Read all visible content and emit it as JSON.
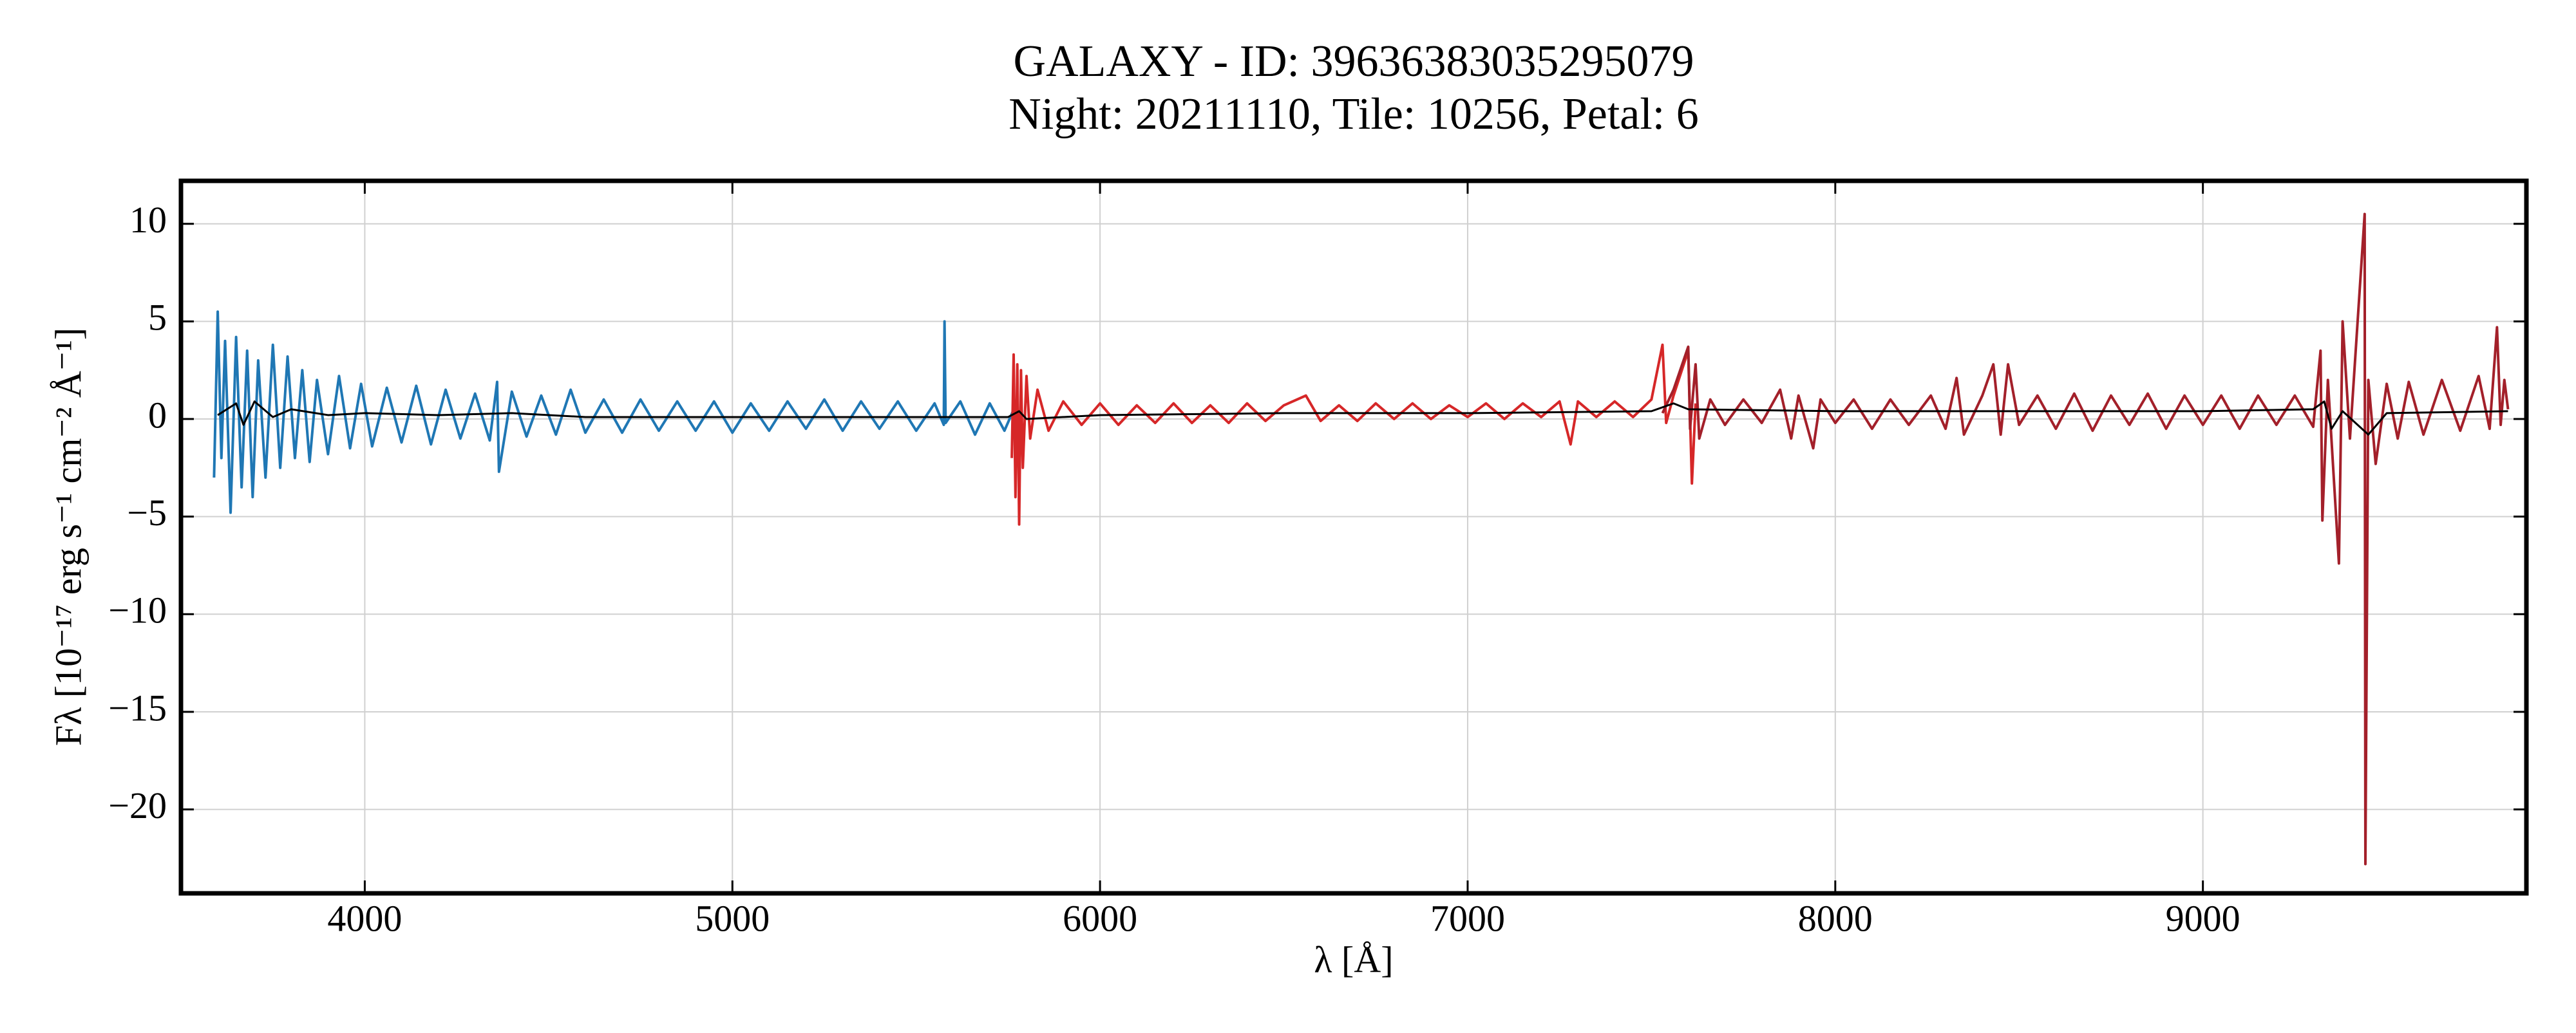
{
  "chart_data": {
    "type": "line",
    "title": "GALAXY - ID: 39636383035295079",
    "subtitle": "Night: 20211110, Tile: 10256, Petal: 6",
    "x_label": "λ [Å]",
    "y_label": "Fλ [10⁻¹⁷ erg s⁻¹ cm⁻² Å⁻¹]",
    "xlim": [
      3500,
      9880
    ],
    "ylim": [
      -24.3,
      12.2
    ],
    "xticks": [
      4000,
      5000,
      6000,
      7000,
      8000,
      9000
    ],
    "yticks": [
      10,
      5,
      0,
      {
        "value": -5,
        "label": "−5"
      },
      {
        "value": -10,
        "label": "−10"
      },
      {
        "value": -15,
        "label": "−15"
      },
      {
        "value": -20,
        "label": "−20"
      }
    ],
    "grid": true,
    "series": [
      {
        "color": "#1f77b4",
        "x": [
          3590,
          3600,
          3610,
          3620,
          3635,
          3650,
          3665,
          3680,
          3695,
          3710,
          3730,
          3750,
          3770,
          3790,
          3810,
          3830,
          3850,
          3870,
          3900,
          3930,
          3960,
          3990,
          4020,
          4060,
          4100,
          4140,
          4180,
          4220,
          4260,
          4300,
          4340,
          4360,
          4365,
          4400,
          4440,
          4480,
          4520,
          4560,
          4600,
          4650,
          4700,
          4750,
          4800,
          4850,
          4900,
          4950,
          5000,
          5050,
          5100,
          5150,
          5200,
          5250,
          5300,
          5350,
          5400,
          5450,
          5500,
          5550,
          5575,
          5577,
          5580,
          5620,
          5660,
          5700,
          5740,
          5770
        ],
        "values": [
          -3.0,
          5.5,
          -2.0,
          4.0,
          -4.8,
          4.2,
          -3.5,
          3.5,
          -4.0,
          3.0,
          -3.0,
          3.8,
          -2.5,
          3.2,
          -2.0,
          2.5,
          -2.2,
          2.0,
          -1.8,
          2.2,
          -1.5,
          1.8,
          -1.4,
          1.6,
          -1.2,
          1.7,
          -1.3,
          1.5,
          -1.0,
          1.3,
          -1.1,
          1.9,
          -2.7,
          1.4,
          -0.9,
          1.2,
          -0.8,
          1.5,
          -0.7,
          1.0,
          -0.7,
          1.0,
          -0.6,
          0.9,
          -0.6,
          0.9,
          -0.7,
          0.8,
          -0.6,
          0.9,
          -0.5,
          1.0,
          -0.6,
          0.9,
          -0.5,
          0.9,
          -0.6,
          0.8,
          -0.3,
          5.0,
          -0.2,
          0.9,
          -0.8,
          0.8,
          -0.6,
          0.7
        ]
      },
      {
        "color": "#d62728",
        "x": [
          5760,
          5765,
          5770,
          5775,
          5780,
          5785,
          5790,
          5800,
          5810,
          5830,
          5860,
          5900,
          5950,
          6000,
          6050,
          6100,
          6150,
          6200,
          6250,
          6300,
          6350,
          6400,
          6450,
          6500,
          6560,
          6600,
          6650,
          6700,
          6750,
          6800,
          6850,
          6900,
          6950,
          7000,
          7050,
          7100,
          7150,
          7200,
          7250,
          7280,
          7300,
          7350,
          7400,
          7450,
          7500,
          7530,
          7540,
          7560,
          7600,
          7610,
          7620
        ],
        "values": [
          -2.0,
          3.3,
          -4.0,
          2.8,
          -5.4,
          2.5,
          -2.5,
          2.2,
          -1.0,
          1.5,
          -0.6,
          0.9,
          -0.3,
          0.8,
          -0.3,
          0.7,
          -0.2,
          0.8,
          -0.2,
          0.7,
          -0.2,
          0.8,
          -0.1,
          0.7,
          1.2,
          -0.1,
          0.7,
          -0.1,
          0.8,
          0.0,
          0.8,
          0.0,
          0.7,
          0.1,
          0.8,
          0.0,
          0.8,
          0.1,
          0.9,
          -1.3,
          0.9,
          0.1,
          0.9,
          0.1,
          1.0,
          3.8,
          -0.2,
          1.2,
          3.5,
          -3.3,
          0.8
        ]
      },
      {
        "color": "#a3202a",
        "x": [
          7530,
          7560,
          7600,
          7605,
          7620,
          7630,
          7660,
          7700,
          7750,
          7800,
          7850,
          7880,
          7900,
          7940,
          7960,
          8000,
          8050,
          8100,
          8150,
          8200,
          8260,
          8300,
          8330,
          8350,
          8400,
          8430,
          8450,
          8470,
          8500,
          8550,
          8600,
          8650,
          8700,
          8750,
          8800,
          8850,
          8900,
          8950,
          9000,
          9050,
          9100,
          9150,
          9200,
          9250,
          9300,
          9320,
          9325,
          9340,
          9370,
          9380,
          9400,
          9440,
          9442,
          9450,
          9470,
          9500,
          9530,
          9560,
          9600,
          9650,
          9700,
          9750,
          9780,
          9800,
          9810,
          9820,
          9830
        ],
        "values": [
          0.3,
          1.5,
          3.7,
          -0.5,
          2.8,
          -1.0,
          1.0,
          -0.3,
          1.0,
          -0.2,
          1.5,
          -1.0,
          1.2,
          -1.5,
          1.0,
          -0.2,
          1.0,
          -0.5,
          1.0,
          -0.3,
          1.2,
          -0.5,
          2.1,
          -0.8,
          1.2,
          2.8,
          -0.8,
          2.8,
          -0.3,
          1.2,
          -0.5,
          1.3,
          -0.6,
          1.2,
          -0.3,
          1.3,
          -0.5,
          1.2,
          -0.3,
          1.2,
          -0.5,
          1.2,
          -0.3,
          1.2,
          -0.4,
          3.5,
          -5.2,
          2.0,
          -7.4,
          5.0,
          -1.0,
          10.5,
          -22.8,
          2.0,
          -2.3,
          1.8,
          -1.0,
          1.9,
          -0.8,
          2.0,
          -0.6,
          2.2,
          -0.5,
          4.7,
          -0.3,
          2.0,
          0.5
        ]
      },
      {
        "color": "#000000",
        "x": [
          3600,
          3650,
          3670,
          3700,
          3750,
          3800,
          3900,
          4000,
          4200,
          4400,
          4600,
          4800,
          5000,
          5500,
          5750,
          5780,
          5800,
          6000,
          6500,
          7000,
          7500,
          7560,
          7600,
          8000,
          8500,
          9000,
          9300,
          9330,
          9350,
          9380,
          9450,
          9500,
          9830
        ],
        "values": [
          0.2,
          0.8,
          -0.3,
          0.9,
          0.1,
          0.5,
          0.2,
          0.3,
          0.2,
          0.3,
          0.1,
          0.1,
          0.1,
          0.1,
          0.1,
          0.4,
          0.0,
          0.2,
          0.3,
          0.3,
          0.4,
          0.8,
          0.5,
          0.4,
          0.4,
          0.4,
          0.5,
          0.9,
          -0.5,
          0.4,
          -0.8,
          0.3,
          0.4
        ]
      }
    ]
  }
}
